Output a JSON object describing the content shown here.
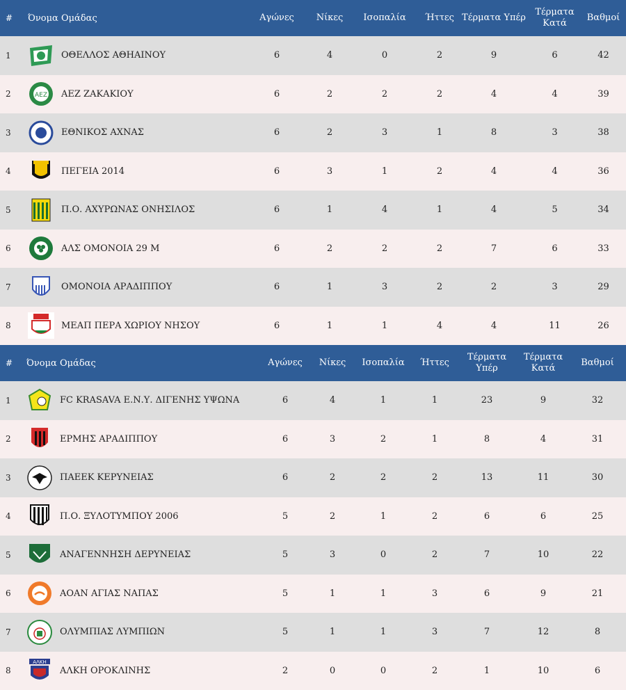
{
  "colors": {
    "header_bg": "#2f5d97",
    "row_odd": "#dedede",
    "row_even": "#f8eeee"
  },
  "table1": {
    "headers": {
      "rank": "#",
      "team": "Όνομα Ομάδας",
      "played": "Αγώνες",
      "wins": "Νίκες",
      "draws": "Ισοπαλία",
      "losses": "Ήττες",
      "gf": "Τέρματα Υπέρ",
      "ga": "Τέρματα Κατά",
      "points": "Βαθμοί"
    },
    "rows": [
      {
        "rank": "1",
        "team": "ΟΘΕΛΛΟΣ ΑΘΗΑΙΝΟΥ",
        "played": "6",
        "wins": "4",
        "draws": "0",
        "losses": "2",
        "gf": "9",
        "ga": "6",
        "points": "42",
        "logo": "othellos-crest-icon"
      },
      {
        "rank": "2",
        "team": "ΑΕΖ ΖΑΚΑΚΙΟΥ",
        "played": "6",
        "wins": "2",
        "draws": "2",
        "losses": "2",
        "gf": "4",
        "ga": "4",
        "points": "39",
        "logo": "aez-crest-icon"
      },
      {
        "rank": "3",
        "team": "ΕΘΝΙΚΟΣ ΑΧΝΑΣ",
        "played": "6",
        "wins": "2",
        "draws": "3",
        "losses": "1",
        "gf": "8",
        "ga": "3",
        "points": "38",
        "logo": "ethnikos-crest-icon"
      },
      {
        "rank": "4",
        "team": "ΠΕΓΕΙΑ 2014",
        "played": "6",
        "wins": "3",
        "draws": "1",
        "losses": "2",
        "gf": "4",
        "ga": "4",
        "points": "36",
        "logo": "pegeia-crest-icon"
      },
      {
        "rank": "5",
        "team": "Π.Ο. ΑΧΥΡΩΝΑΣ ΟΝΗΣΙΛΟΣ",
        "played": "6",
        "wins": "1",
        "draws": "4",
        "losses": "1",
        "gf": "4",
        "ga": "5",
        "points": "34",
        "logo": "achyronas-crest-icon"
      },
      {
        "rank": "6",
        "team": "ΑΛΣ ΟΜΟΝΟΙΑ 29 Μ",
        "played": "6",
        "wins": "2",
        "draws": "2",
        "losses": "2",
        "gf": "7",
        "ga": "6",
        "points": "33",
        "logo": "omonoia29-crest-icon"
      },
      {
        "rank": "7",
        "team": "ΟΜΟΝΟΙΑ ΑΡΑΔΙΠΠΟΥ",
        "played": "6",
        "wins": "1",
        "draws": "3",
        "losses": "2",
        "gf": "2",
        "ga": "3",
        "points": "29",
        "logo": "omonoia-aradippou-crest-icon"
      },
      {
        "rank": "8",
        "team": "ΜΕΑΠ ΠΕΡΑ ΧΩΡΙΟΥ ΝΗΣΟΥ",
        "played": "6",
        "wins": "1",
        "draws": "1",
        "losses": "4",
        "gf": "4",
        "ga": "11",
        "points": "26",
        "logo": "meap-crest-icon"
      }
    ]
  },
  "table2": {
    "headers": {
      "rank": "#",
      "team": "Όνομα Ομάδας",
      "played": "Αγώνες",
      "wins": "Νίκες",
      "draws": "Ισοπαλία",
      "losses": "Ήττες",
      "gf": "Τέρματα Υπέρ",
      "ga": "Τέρματα Κατά",
      "points": "Βαθμοί"
    },
    "rows": [
      {
        "rank": "1",
        "team": "FC KRASAVA Ε.Ν.Υ. ΔΙΓΕΝΗΣ ΥΨΩΝΑ",
        "played": "6",
        "wins": "4",
        "draws": "1",
        "losses": "1",
        "gf": "23",
        "ga": "9",
        "points": "32",
        "logo": "krasava-crest-icon"
      },
      {
        "rank": "2",
        "team": "ΕΡΜΗΣ ΑΡΑΔΙΠΠΟΥ",
        "played": "6",
        "wins": "3",
        "draws": "2",
        "losses": "1",
        "gf": "8",
        "ga": "4",
        "points": "31",
        "logo": "ermis-crest-icon"
      },
      {
        "rank": "3",
        "team": "ΠΑΕΕΚ ΚΕΡΥΝΕΙΑΣ",
        "played": "6",
        "wins": "2",
        "draws": "2",
        "losses": "2",
        "gf": "13",
        "ga": "11",
        "points": "30",
        "logo": "paeek-crest-icon"
      },
      {
        "rank": "4",
        "team": "Π.Ο. ΞΥΛΟΤΥΜΠΟΥ 2006",
        "played": "5",
        "wins": "2",
        "draws": "1",
        "losses": "2",
        "gf": "6",
        "ga": "6",
        "points": "25",
        "logo": "xylotymbou-crest-icon"
      },
      {
        "rank": "5",
        "team": "ΑΝΑΓΕΝΝΗΣΗ ΔΕΡΥΝΕΙΑΣ",
        "played": "5",
        "wins": "3",
        "draws": "0",
        "losses": "2",
        "gf": "7",
        "ga": "10",
        "points": "22",
        "logo": "anagennisi-crest-icon"
      },
      {
        "rank": "6",
        "team": "ΑΟΑΝ ΑΓΙΑΣ ΝΑΠΑΣ",
        "played": "5",
        "wins": "1",
        "draws": "1",
        "losses": "3",
        "gf": "6",
        "ga": "9",
        "points": "21",
        "logo": "aoan-crest-icon"
      },
      {
        "rank": "7",
        "team": "ΟΛΥΜΠΙΑΣ ΛΥΜΠΙΩΝ",
        "played": "5",
        "wins": "1",
        "draws": "1",
        "losses": "3",
        "gf": "7",
        "ga": "12",
        "points": "8",
        "logo": "olympias-crest-icon"
      },
      {
        "rank": "8",
        "team": "ΑΛΚΗ ΟΡΟΚΛΙΝΗΣ",
        "played": "2",
        "wins": "0",
        "draws": "0",
        "losses": "2",
        "gf": "1",
        "ga": "10",
        "points": "6",
        "logo": "alki-crest-icon"
      }
    ]
  }
}
